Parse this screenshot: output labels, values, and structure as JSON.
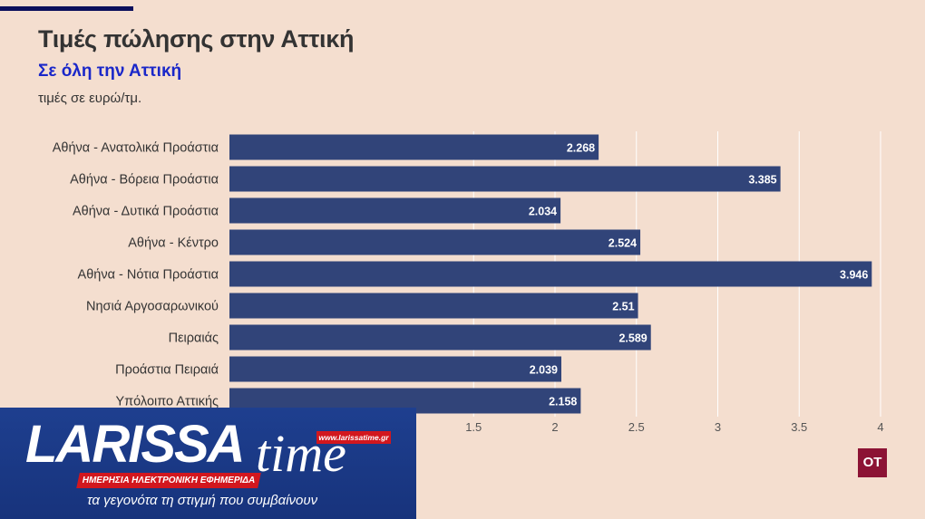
{
  "chart_data": {
    "type": "bar",
    "orientation": "horizontal",
    "title": "Τιμές πώλησης στην Αττική",
    "subtitle": "Σε όλη την Αττική",
    "ylabel": "τιμές σε ευρώ/τμ.",
    "xlabel": "",
    "categories": [
      "Αθήνα - Ανατολικά Προάστια",
      "Αθήνα - Βόρεια Προάστια",
      "Αθήνα - Δυτικά Προάστια",
      "Αθήνα - Κέντρο",
      "Αθήνα - Νότια Προάστια",
      "Νησιά Αργοσαρωνικού",
      "Πειραιάς",
      "Προάστια Πειραιά",
      "Υπόλοιπο Αττικής"
    ],
    "values": [
      2.268,
      3.385,
      2.034,
      2.524,
      3.946,
      2.51,
      2.589,
      2.039,
      2.158
    ],
    "value_labels": [
      "2.268",
      "3.385",
      "2.034",
      "2.524",
      "3.946",
      "2.51",
      "2.589",
      "2.039",
      "2.158"
    ],
    "xlim": [
      0,
      4
    ],
    "xticks": [
      "1.5",
      "2",
      "2.5",
      "3",
      "3.5",
      "4"
    ],
    "xtick_values": [
      1.5,
      2,
      2.5,
      3,
      3.5,
      4
    ],
    "grid": true,
    "bar_color": "#314479"
  },
  "logo": {
    "word": "LARISSA",
    "word2": "time",
    "url": "www.larissatime.gr",
    "strip": "ΗΜΕΡΗΣΙΑ ΗΛΕΚΤΡΟΝΙΚΗ ΕΦΗΜΕΡΙΔΑ",
    "tagline": "τα γεγονότα τη στιγμή που συμβαίνουν"
  },
  "badge": "OT"
}
